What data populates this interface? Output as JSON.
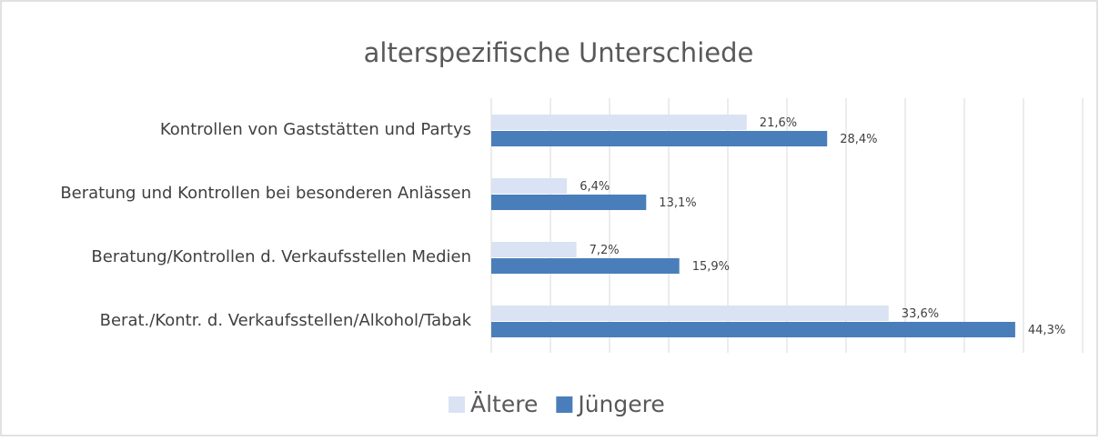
{
  "chart_data": {
    "type": "barh",
    "title": "alterspezifische Unterschiede",
    "categories": [
      "Kontrollen von Gaststätten und Partys",
      "Beratung und Kontrollen bei besonderen Anlässen",
      "Beratung/Kontrollen d. Verkaufsstellen Medien",
      "Berat./Kontr. d. Verkaufsstellen/Alkohol/Tabak"
    ],
    "series": [
      {
        "name": "Ältere",
        "color": "#dae3f3",
        "values": [
          21.6,
          6.4,
          7.2,
          33.6
        ],
        "value_labels": [
          "21,6%",
          "6,4%",
          "7,2%",
          "33,6%"
        ]
      },
      {
        "name": "Jüngere",
        "color": "#4a7ebb",
        "values": [
          28.4,
          13.1,
          15.9,
          44.3
        ],
        "value_labels": [
          "28,4%",
          "13,1%",
          "15,9%",
          "44,3%"
        ]
      }
    ],
    "xlim": [
      0,
      50
    ],
    "xticks": [
      0,
      5,
      10,
      15,
      20,
      25,
      30,
      35,
      40,
      45,
      50
    ],
    "grid": true,
    "legend": "bottom"
  }
}
